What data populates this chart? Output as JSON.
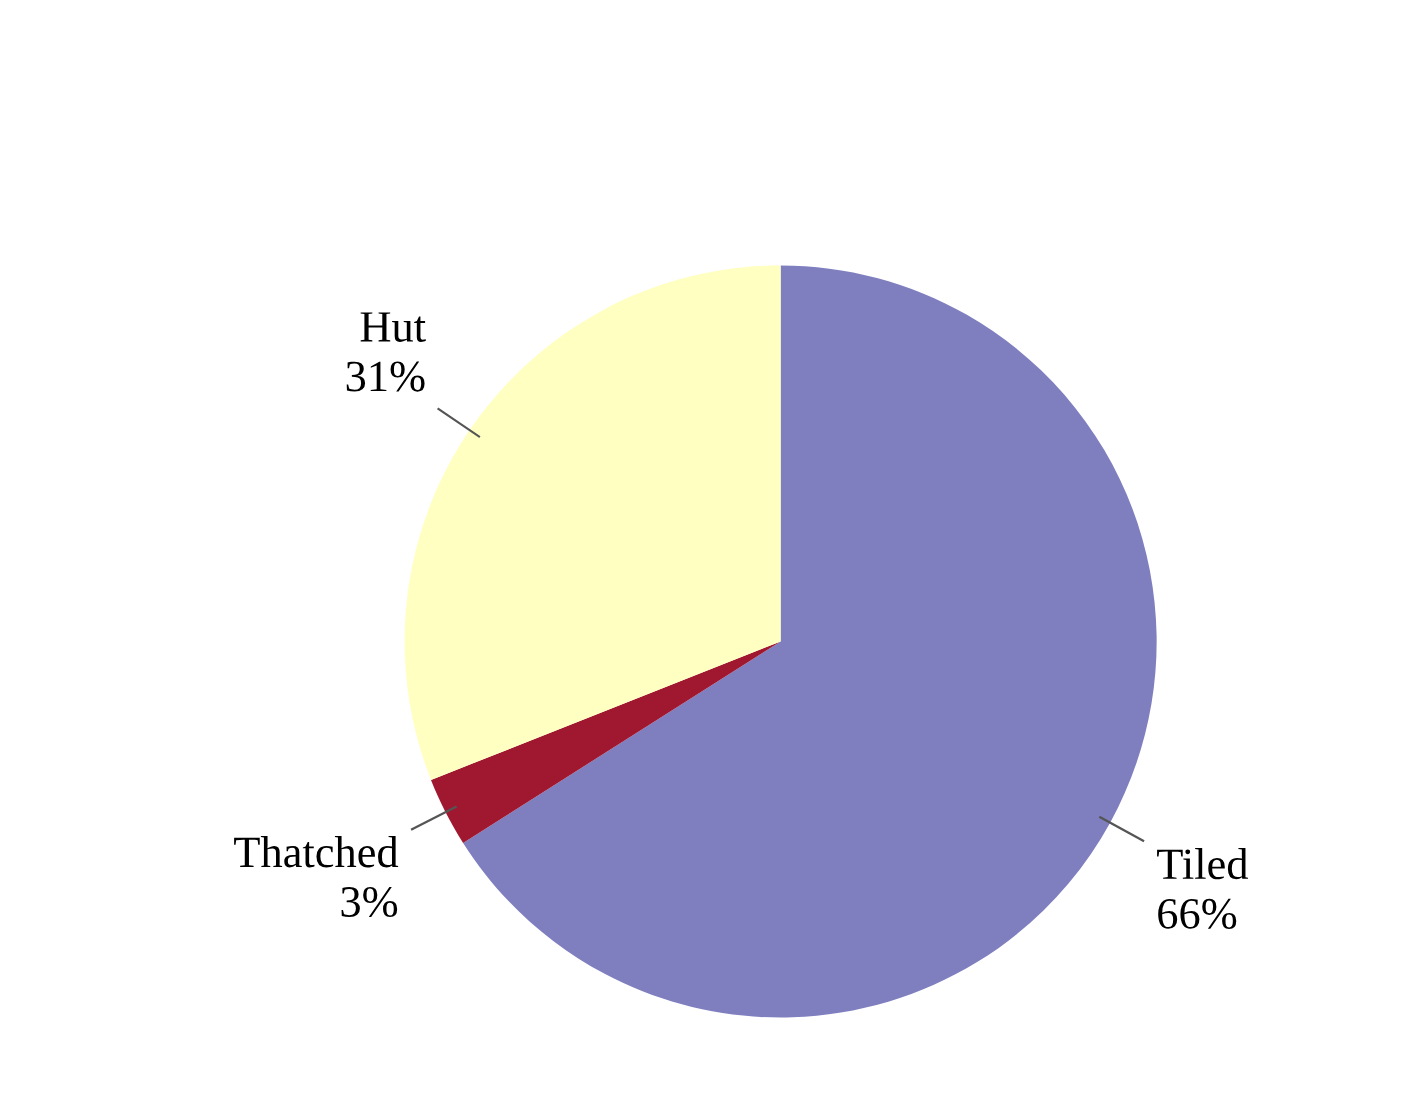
{
  "chart_data": {
    "type": "pie",
    "categories": [
      "Tiled",
      "Thatched",
      "Hut"
    ],
    "values": [
      66,
      3,
      31
    ],
    "colors": [
      "#7f7fc0",
      "#a01830",
      "#ffffc2"
    ],
    "value_labels": [
      "66%",
      "3%",
      "31%"
    ]
  }
}
